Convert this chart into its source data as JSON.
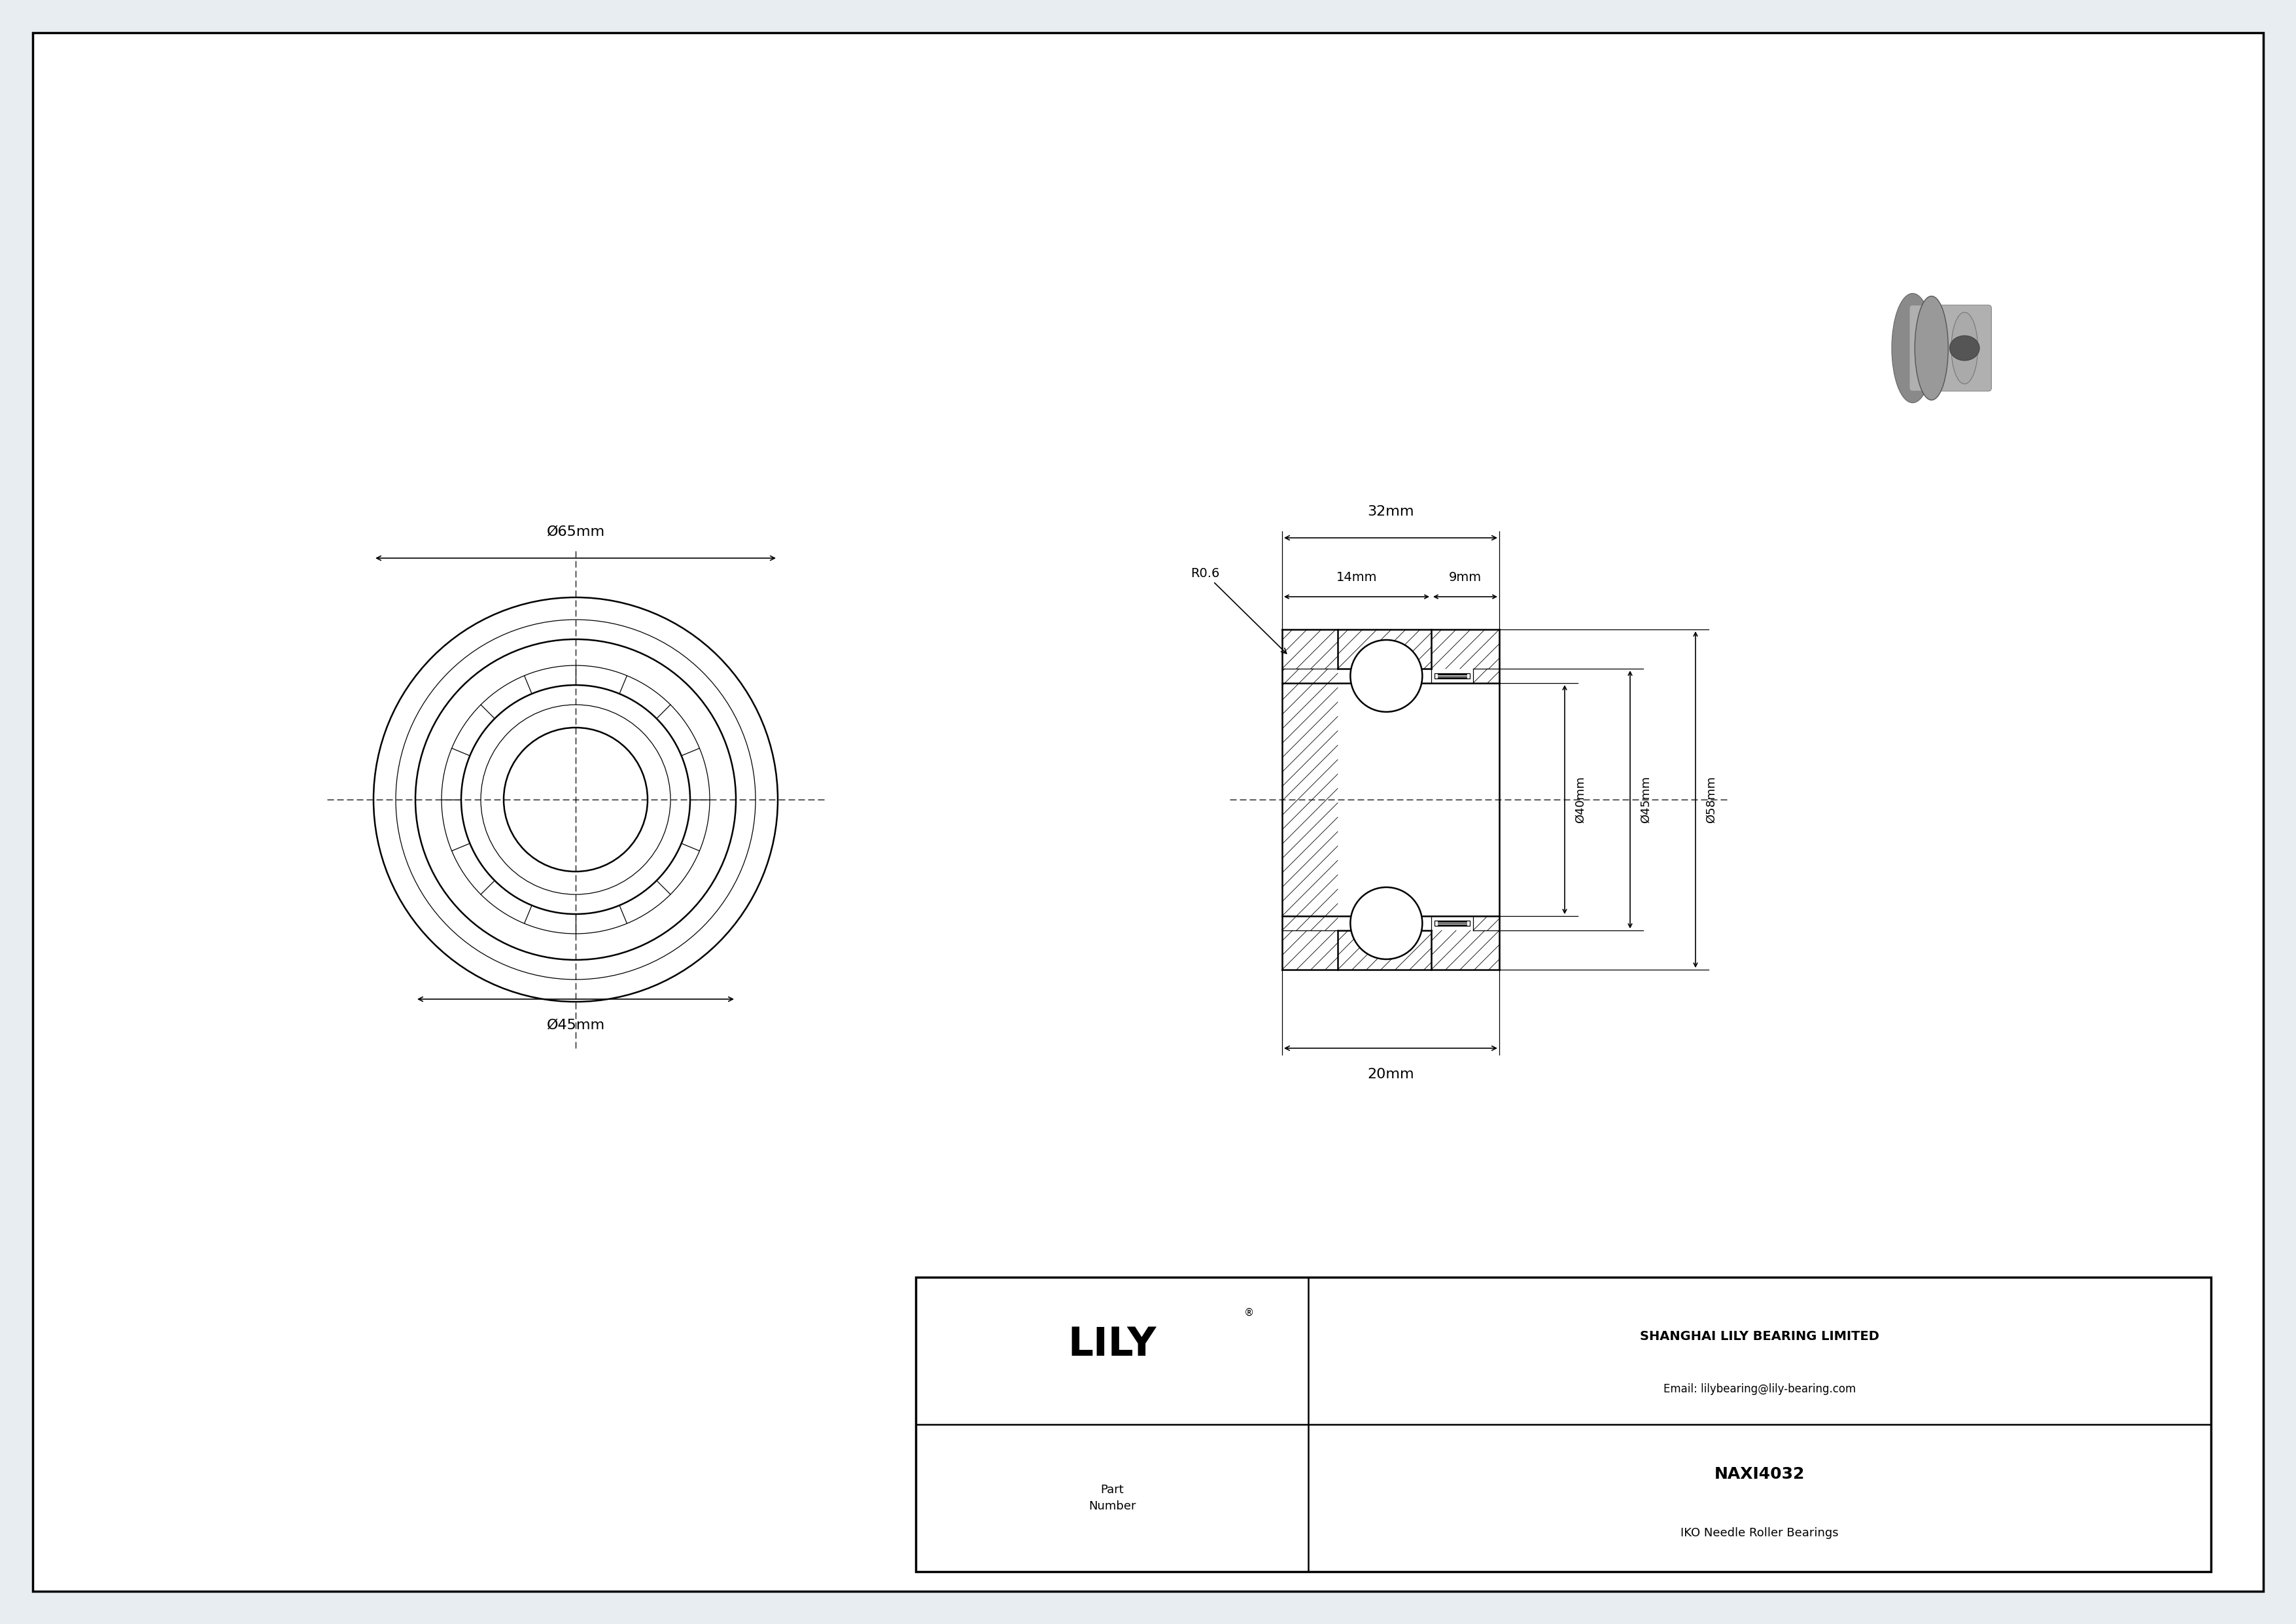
{
  "bg_color": "#e8edf2",
  "drawing_bg": "#ffffff",
  "border_color": "#000000",
  "title_company": "SHANGHAI LILY BEARING LIMITED",
  "title_email": "Email: lilybearing@lily-bearing.com",
  "part_label": "Part\nNumber",
  "part_number": "NAXI4032",
  "part_desc": "IKO Needle Roller Bearings",
  "lily_logo": "LILY",
  "dim_od": "Ø65mm",
  "dim_inner45_front": "Ø45mm",
  "dim_total_w": "32mm",
  "dim_left_w": "14mm",
  "dim_right_w": "9mm",
  "dim_d40": "Ø40mm",
  "dim_d45": "Ø45mm",
  "dim_d58": "Ø58mm",
  "dim_height": "20mm",
  "dim_radius": "R0.6"
}
